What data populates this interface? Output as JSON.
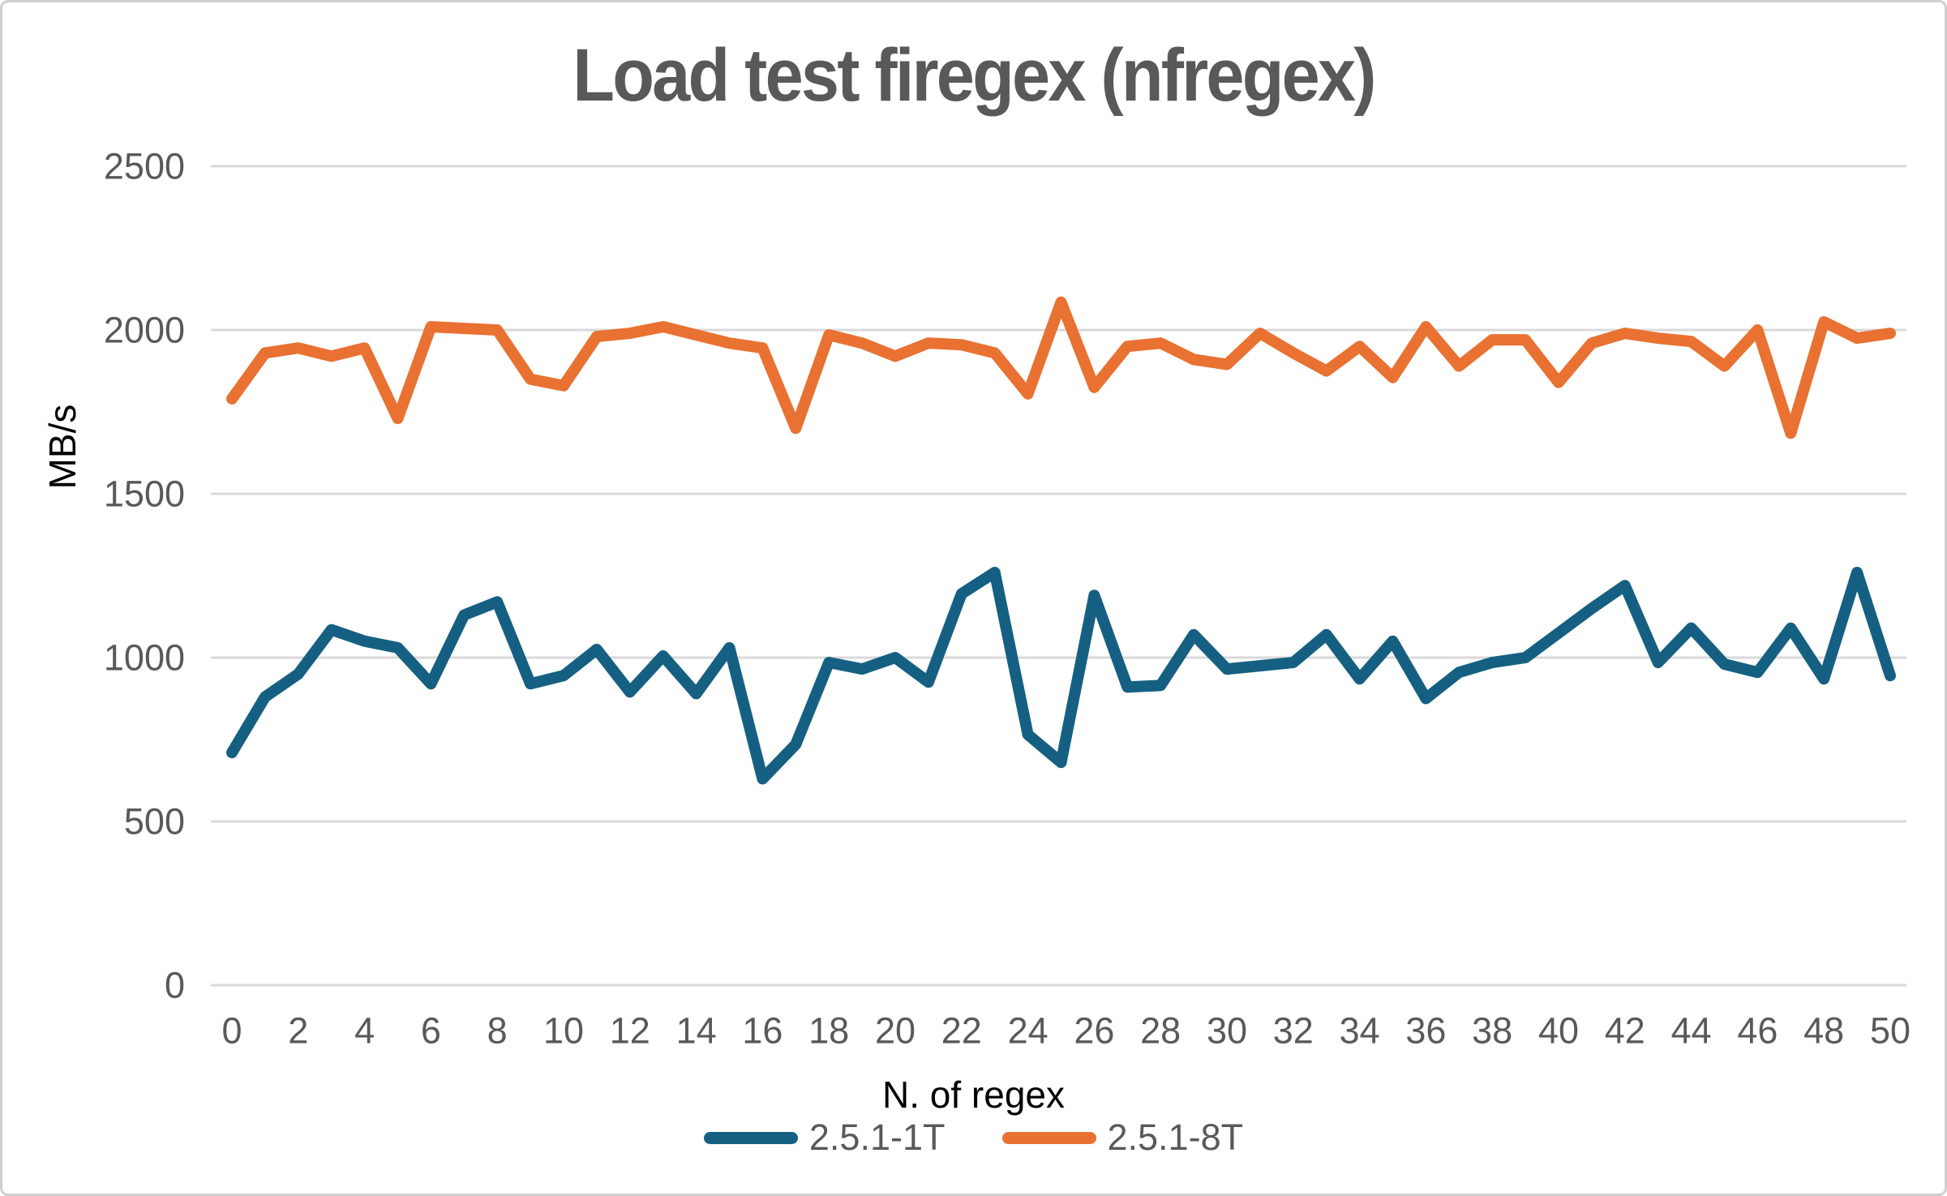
{
  "title": "Load test firegex (nfregex)",
  "y_axis": {
    "label": "MB/s",
    "ticks": [
      0,
      500,
      1000,
      1500,
      2000,
      2500
    ],
    "min": 0,
    "max": 2500
  },
  "x_axis": {
    "label": "N. of regex",
    "min": 0,
    "max": 50,
    "tick_step": 2
  },
  "legend": [
    {
      "name": "2.5.1-1T",
      "color": "#156082"
    },
    {
      "name": "2.5.1-8T",
      "color": "#E97132"
    }
  ],
  "colors": {
    "series_1T": "#156082",
    "series_8T": "#E97132",
    "title_text": "#595959",
    "tick_text": "#595959",
    "axis_title_text": "#000000",
    "gridline": "#D9D9D9",
    "background": "#FFFFFF"
  },
  "chart_data": {
    "type": "line",
    "title": "Load test firegex (nfregex)",
    "xlabel": "N. of regex",
    "ylabel": "MB/s",
    "ylim": [
      0,
      2500
    ],
    "grid": "horizontal",
    "legend_position": "bottom",
    "x": [
      0,
      1,
      2,
      3,
      4,
      5,
      6,
      7,
      8,
      9,
      10,
      11,
      12,
      13,
      14,
      15,
      16,
      17,
      18,
      19,
      20,
      21,
      22,
      23,
      24,
      25,
      26,
      27,
      28,
      29,
      30,
      31,
      32,
      33,
      34,
      35,
      36,
      37,
      38,
      39,
      40,
      41,
      42,
      43,
      44,
      45,
      46,
      47,
      48,
      49,
      50
    ],
    "series": [
      {
        "name": "2.5.1-1T",
        "color": "#156082",
        "values": [
          710,
          880,
          950,
          1085,
          1050,
          1030,
          920,
          1130,
          1170,
          920,
          945,
          1025,
          895,
          1005,
          890,
          1030,
          630,
          735,
          985,
          965,
          1000,
          925,
          1195,
          1260,
          765,
          680,
          1190,
          910,
          915,
          1070,
          965,
          975,
          985,
          1070,
          935,
          1050,
          875,
          955,
          985,
          1000,
          1075,
          1150,
          1220,
          985,
          1090,
          980,
          955,
          1090,
          935,
          1260,
          945
        ]
      },
      {
        "name": "2.5.1-8T",
        "color": "#E97132",
        "values": [
          1790,
          1930,
          1945,
          1920,
          1945,
          1730,
          2010,
          2005,
          2000,
          1850,
          1830,
          1980,
          1990,
          2010,
          1985,
          1960,
          1945,
          1700,
          1985,
          1960,
          1920,
          1960,
          1955,
          1930,
          1805,
          2085,
          1825,
          1950,
          1960,
          1910,
          1895,
          1990,
          1930,
          1875,
          1950,
          1855,
          2010,
          1890,
          1970,
          1970,
          1840,
          1960,
          1990,
          1975,
          1965,
          1890,
          2000,
          1685,
          2025,
          1975,
          1990
        ]
      }
    ]
  }
}
